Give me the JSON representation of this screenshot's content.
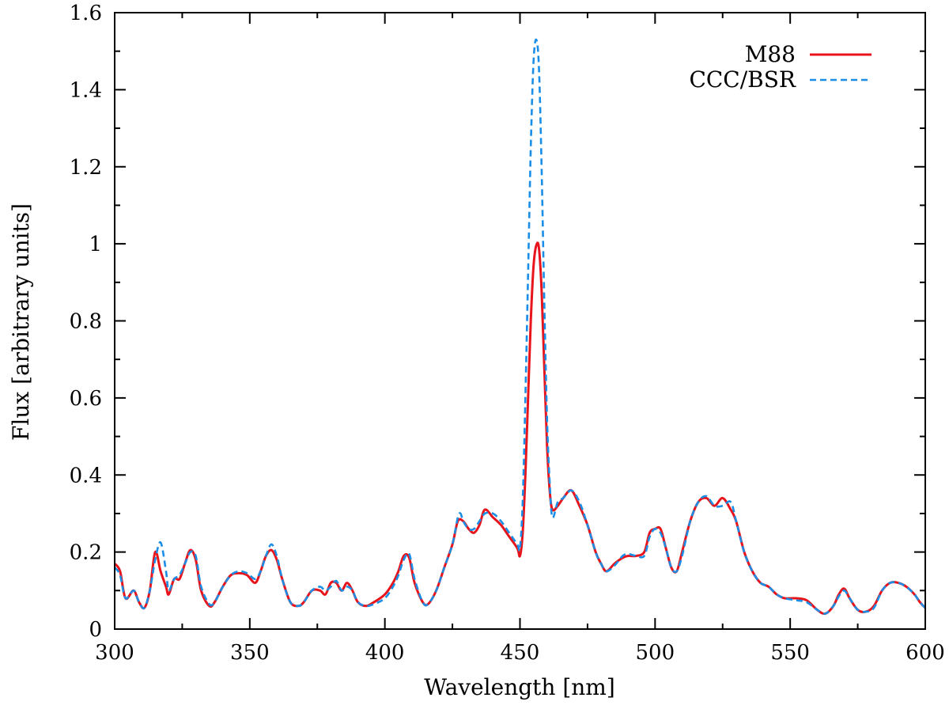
{
  "chart_data": {
    "type": "line",
    "title": "",
    "xlabel": "Wavelength [nm]",
    "ylabel": "Flux [arbitrary units]",
    "xlim": [
      300,
      600
    ],
    "ylim": [
      0,
      1.6
    ],
    "grid": false,
    "legend_position": "top-right",
    "x_ticks": [
      300,
      350,
      400,
      450,
      500,
      550,
      600
    ],
    "x_tick_labels": [
      "300",
      "350",
      "400",
      "450",
      "500",
      "550",
      "600"
    ],
    "y_ticks": [
      0,
      0.2,
      0.4,
      0.6,
      0.8,
      1,
      1.2,
      1.4,
      1.6
    ],
    "y_tick_labels": [
      "0",
      "0.2",
      "0.4",
      "0.6",
      "0.8",
      "1",
      "1.2",
      "1.4",
      "1.6"
    ],
    "series": [
      {
        "name": "M88",
        "color": "#e8141b",
        "dash": "solid",
        "points": [
          [
            300,
            0.17
          ],
          [
            302,
            0.15
          ],
          [
            304,
            0.08
          ],
          [
            307,
            0.1
          ],
          [
            309,
            0.07
          ],
          [
            311,
            0.055
          ],
          [
            313,
            0.1
          ],
          [
            315,
            0.2
          ],
          [
            317,
            0.15
          ],
          [
            319,
            0.11
          ],
          [
            320,
            0.09
          ],
          [
            322,
            0.13
          ],
          [
            324,
            0.13
          ],
          [
            326,
            0.17
          ],
          [
            328,
            0.205
          ],
          [
            330,
            0.18
          ],
          [
            332,
            0.1
          ],
          [
            335,
            0.06
          ],
          [
            337,
            0.07
          ],
          [
            340,
            0.11
          ],
          [
            343,
            0.14
          ],
          [
            346,
            0.145
          ],
          [
            349,
            0.14
          ],
          [
            352,
            0.12
          ],
          [
            354,
            0.15
          ],
          [
            356,
            0.19
          ],
          [
            358,
            0.205
          ],
          [
            360,
            0.18
          ],
          [
            362,
            0.13
          ],
          [
            365,
            0.07
          ],
          [
            368,
            0.06
          ],
          [
            370,
            0.07
          ],
          [
            373,
            0.1
          ],
          [
            376,
            0.1
          ],
          [
            378,
            0.09
          ],
          [
            380,
            0.12
          ],
          [
            382,
            0.12
          ],
          [
            384,
            0.1
          ],
          [
            386,
            0.12
          ],
          [
            388,
            0.1
          ],
          [
            390,
            0.07
          ],
          [
            393,
            0.06
          ],
          [
            396,
            0.07
          ],
          [
            400,
            0.09
          ],
          [
            403,
            0.12
          ],
          [
            405,
            0.15
          ],
          [
            407,
            0.19
          ],
          [
            409,
            0.185
          ],
          [
            411,
            0.12
          ],
          [
            414,
            0.07
          ],
          [
            416,
            0.065
          ],
          [
            419,
            0.1
          ],
          [
            422,
            0.16
          ],
          [
            425,
            0.22
          ],
          [
            427,
            0.28
          ],
          [
            429,
            0.28
          ],
          [
            431,
            0.26
          ],
          [
            433,
            0.25
          ],
          [
            435,
            0.27
          ],
          [
            437,
            0.31
          ],
          [
            440,
            0.29
          ],
          [
            443,
            0.27
          ],
          [
            446,
            0.24
          ],
          [
            449,
            0.21
          ],
          [
            450,
            0.19
          ],
          [
            451,
            0.25
          ],
          [
            452,
            0.4
          ],
          [
            453,
            0.6
          ],
          [
            454,
            0.8
          ],
          [
            455,
            0.94
          ],
          [
            456,
            0.995
          ],
          [
            457,
            0.99
          ],
          [
            458,
            0.88
          ],
          [
            459,
            0.68
          ],
          [
            460,
            0.48
          ],
          [
            461,
            0.36
          ],
          [
            462,
            0.31
          ],
          [
            464,
            0.32
          ],
          [
            466,
            0.34
          ],
          [
            469,
            0.36
          ],
          [
            472,
            0.32
          ],
          [
            475,
            0.27
          ],
          [
            478,
            0.2
          ],
          [
            480,
            0.17
          ],
          [
            482,
            0.15
          ],
          [
            485,
            0.17
          ],
          [
            488,
            0.185
          ],
          [
            490,
            0.19
          ],
          [
            493,
            0.19
          ],
          [
            496,
            0.2
          ],
          [
            498,
            0.25
          ],
          [
            500,
            0.26
          ],
          [
            502,
            0.26
          ],
          [
            504,
            0.21
          ],
          [
            506,
            0.16
          ],
          [
            508,
            0.15
          ],
          [
            510,
            0.2
          ],
          [
            513,
            0.28
          ],
          [
            516,
            0.33
          ],
          [
            519,
            0.34
          ],
          [
            522,
            0.32
          ],
          [
            525,
            0.34
          ],
          [
            528,
            0.31
          ],
          [
            530,
            0.28
          ],
          [
            533,
            0.2
          ],
          [
            536,
            0.15
          ],
          [
            539,
            0.12
          ],
          [
            542,
            0.11
          ],
          [
            545,
            0.09
          ],
          [
            548,
            0.08
          ],
          [
            552,
            0.08
          ],
          [
            556,
            0.075
          ],
          [
            560,
            0.05
          ],
          [
            563,
            0.04
          ],
          [
            566,
            0.06
          ],
          [
            568,
            0.09
          ],
          [
            570,
            0.105
          ],
          [
            572,
            0.08
          ],
          [
            575,
            0.05
          ],
          [
            578,
            0.045
          ],
          [
            581,
            0.06
          ],
          [
            584,
            0.1
          ],
          [
            587,
            0.12
          ],
          [
            590,
            0.12
          ],
          [
            593,
            0.11
          ],
          [
            596,
            0.09
          ],
          [
            598,
            0.07
          ],
          [
            600,
            0.055
          ]
        ]
      },
      {
        "name": "CCC/BSR",
        "color": "#1a8ee6",
        "dash": "dashed",
        "points": [
          [
            300,
            0.16
          ],
          [
            302,
            0.14
          ],
          [
            304,
            0.08
          ],
          [
            307,
            0.1
          ],
          [
            309,
            0.07
          ],
          [
            311,
            0.055
          ],
          [
            313,
            0.1
          ],
          [
            315,
            0.18
          ],
          [
            317,
            0.225
          ],
          [
            319,
            0.15
          ],
          [
            320,
            0.1
          ],
          [
            322,
            0.13
          ],
          [
            324,
            0.14
          ],
          [
            326,
            0.17
          ],
          [
            328,
            0.2
          ],
          [
            330,
            0.19
          ],
          [
            332,
            0.11
          ],
          [
            335,
            0.065
          ],
          [
            337,
            0.07
          ],
          [
            340,
            0.11
          ],
          [
            343,
            0.14
          ],
          [
            346,
            0.15
          ],
          [
            349,
            0.145
          ],
          [
            352,
            0.13
          ],
          [
            354,
            0.15
          ],
          [
            356,
            0.19
          ],
          [
            358,
            0.22
          ],
          [
            360,
            0.19
          ],
          [
            362,
            0.13
          ],
          [
            365,
            0.07
          ],
          [
            368,
            0.06
          ],
          [
            370,
            0.07
          ],
          [
            373,
            0.1
          ],
          [
            376,
            0.11
          ],
          [
            378,
            0.1
          ],
          [
            380,
            0.11
          ],
          [
            382,
            0.125
          ],
          [
            384,
            0.1
          ],
          [
            386,
            0.11
          ],
          [
            388,
            0.1
          ],
          [
            390,
            0.07
          ],
          [
            393,
            0.06
          ],
          [
            396,
            0.065
          ],
          [
            400,
            0.08
          ],
          [
            403,
            0.11
          ],
          [
            405,
            0.14
          ],
          [
            407,
            0.18
          ],
          [
            409,
            0.195
          ],
          [
            411,
            0.13
          ],
          [
            414,
            0.07
          ],
          [
            416,
            0.065
          ],
          [
            419,
            0.1
          ],
          [
            422,
            0.16
          ],
          [
            425,
            0.22
          ],
          [
            427,
            0.29
          ],
          [
            428,
            0.3
          ],
          [
            429,
            0.28
          ],
          [
            431,
            0.26
          ],
          [
            433,
            0.26
          ],
          [
            435,
            0.28
          ],
          [
            437,
            0.3
          ],
          [
            440,
            0.3
          ],
          [
            443,
            0.28
          ],
          [
            446,
            0.25
          ],
          [
            449,
            0.22
          ],
          [
            450,
            0.21
          ],
          [
            451,
            0.33
          ],
          [
            452,
            0.6
          ],
          [
            453,
            0.92
          ],
          [
            454,
            1.25
          ],
          [
            455,
            1.47
          ],
          [
            456,
            1.53
          ],
          [
            457,
            1.46
          ],
          [
            458,
            1.2
          ],
          [
            459,
            0.85
          ],
          [
            460,
            0.55
          ],
          [
            461,
            0.38
          ],
          [
            462,
            0.29
          ],
          [
            464,
            0.33
          ],
          [
            466,
            0.34
          ],
          [
            469,
            0.36
          ],
          [
            472,
            0.33
          ],
          [
            475,
            0.27
          ],
          [
            478,
            0.2
          ],
          [
            480,
            0.17
          ],
          [
            482,
            0.15
          ],
          [
            485,
            0.165
          ],
          [
            488,
            0.19
          ],
          [
            490,
            0.195
          ],
          [
            493,
            0.19
          ],
          [
            496,
            0.19
          ],
          [
            498,
            0.24
          ],
          [
            500,
            0.26
          ],
          [
            502,
            0.25
          ],
          [
            504,
            0.21
          ],
          [
            506,
            0.16
          ],
          [
            508,
            0.15
          ],
          [
            510,
            0.19
          ],
          [
            513,
            0.28
          ],
          [
            516,
            0.33
          ],
          [
            519,
            0.345
          ],
          [
            522,
            0.32
          ],
          [
            525,
            0.32
          ],
          [
            528,
            0.33
          ],
          [
            530,
            0.28
          ],
          [
            533,
            0.2
          ],
          [
            536,
            0.15
          ],
          [
            539,
            0.12
          ],
          [
            542,
            0.11
          ],
          [
            545,
            0.09
          ],
          [
            548,
            0.08
          ],
          [
            552,
            0.075
          ],
          [
            556,
            0.07
          ],
          [
            560,
            0.05
          ],
          [
            563,
            0.04
          ],
          [
            566,
            0.06
          ],
          [
            568,
            0.085
          ],
          [
            570,
            0.1
          ],
          [
            572,
            0.08
          ],
          [
            575,
            0.05
          ],
          [
            578,
            0.045
          ],
          [
            581,
            0.055
          ],
          [
            584,
            0.1
          ],
          [
            587,
            0.12
          ],
          [
            590,
            0.12
          ],
          [
            593,
            0.11
          ],
          [
            596,
            0.09
          ],
          [
            598,
            0.07
          ],
          [
            600,
            0.055
          ]
        ]
      }
    ]
  }
}
